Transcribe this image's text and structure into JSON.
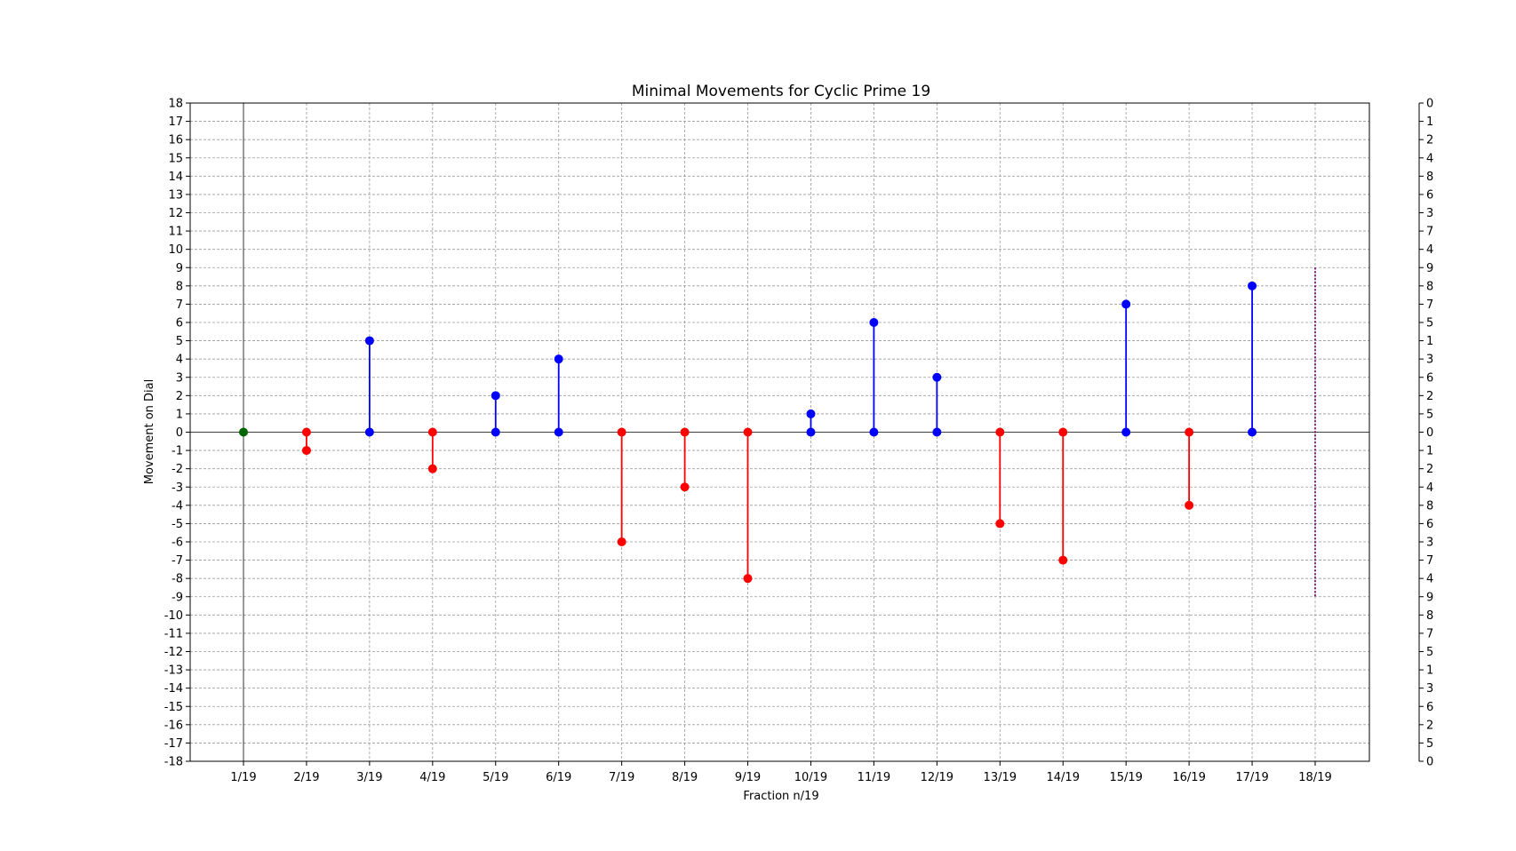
{
  "chart_data": {
    "type": "stem",
    "title": "Minimal Movements for Cyclic Prime 19",
    "xlabel": "Fraction n/19",
    "ylabel": "Movement on Dial",
    "ylim": [
      -18,
      18
    ],
    "grid": true,
    "categories": [
      "1/19",
      "2/19",
      "3/19",
      "4/19",
      "5/19",
      "6/19",
      "7/19",
      "8/19",
      "9/19",
      "10/19",
      "11/19",
      "12/19",
      "13/19",
      "14/19",
      "15/19",
      "16/19",
      "17/19",
      "18/19"
    ],
    "values": [
      0,
      -1,
      5,
      -2,
      2,
      4,
      -6,
      -3,
      -8,
      1,
      6,
      3,
      -5,
      -7,
      7,
      -4,
      8,
      null
    ],
    "boundary_marker": {
      "category": "18/19",
      "range": [
        -9,
        9
      ],
      "style": "dotted",
      "color": "#800080"
    },
    "colors": {
      "positive": "#0000ff",
      "negative": "#ff0000",
      "zero": "#006400"
    },
    "right_axis_labels": [
      "0",
      "1",
      "2",
      "4",
      "8",
      "6",
      "3",
      "7",
      "4",
      "9",
      "8",
      "7",
      "5",
      "1",
      "3",
      "6",
      "2",
      "5",
      "0",
      "1",
      "2",
      "4",
      "8",
      "6",
      "3",
      "7",
      "4",
      "9",
      "8",
      "7",
      "5",
      "1",
      "3",
      "6",
      "2",
      "5",
      "0"
    ]
  }
}
